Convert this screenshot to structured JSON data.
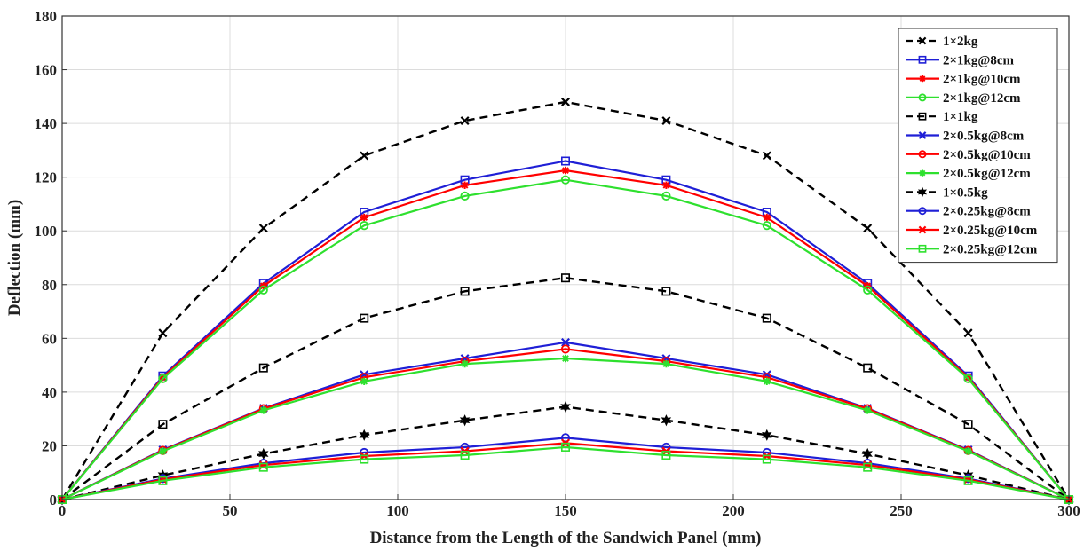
{
  "chart_data": {
    "type": "line",
    "xlabel": "Distance from the Length of the Sandwich Panel (mm)",
    "ylabel": "Deflection (mm)",
    "xlim": [
      0,
      300
    ],
    "ylim": [
      0,
      180
    ],
    "xticks": [
      0,
      50,
      100,
      150,
      200,
      250,
      300
    ],
    "yticks": [
      0,
      20,
      40,
      60,
      80,
      100,
      120,
      140,
      160,
      180
    ],
    "grid": true,
    "legend_position": "top-right",
    "x": [
      0,
      30,
      60,
      90,
      120,
      150,
      180,
      210,
      240,
      270,
      300
    ],
    "series": [
      {
        "name": "1×2kg",
        "color": "#000000",
        "dash": true,
        "marker": "x",
        "values": [
          0,
          62,
          101,
          128,
          141,
          148,
          141,
          128,
          101,
          62,
          0
        ]
      },
      {
        "name": "2×1kg@8cm",
        "color": "#1f1fd6",
        "dash": false,
        "marker": "square",
        "values": [
          0,
          46,
          80.5,
          107,
          119,
          126,
          119,
          107,
          80.5,
          46,
          0
        ]
      },
      {
        "name": "2×1kg@10cm",
        "color": "#ff0000",
        "dash": false,
        "marker": "star",
        "values": [
          0,
          45.5,
          79.5,
          105,
          117,
          122.5,
          117,
          105,
          79.5,
          45.5,
          0
        ]
      },
      {
        "name": "2×1kg@12cm",
        "color": "#2ee02e",
        "dash": false,
        "marker": "circle",
        "values": [
          0,
          45,
          78,
          102,
          113,
          119,
          113,
          102,
          78,
          45,
          0
        ]
      },
      {
        "name": "1×1kg",
        "color": "#000000",
        "dash": true,
        "marker": "square",
        "values": [
          0,
          28,
          49,
          67.5,
          77.5,
          82.5,
          77.5,
          67.5,
          49,
          28,
          0
        ]
      },
      {
        "name": "2×0.5kg@8cm",
        "color": "#1f1fd6",
        "dash": false,
        "marker": "x",
        "values": [
          0,
          18.5,
          34,
          46.5,
          52.5,
          58.5,
          52.5,
          46.5,
          34,
          18.5,
          0
        ]
      },
      {
        "name": "2×0.5kg@10cm",
        "color": "#ff0000",
        "dash": false,
        "marker": "circle",
        "values": [
          0,
          18.3,
          33.8,
          45.5,
          51.5,
          56,
          51.5,
          45.5,
          33.8,
          18.3,
          0
        ]
      },
      {
        "name": "2×0.5kg@12cm",
        "color": "#2ee02e",
        "dash": false,
        "marker": "star",
        "values": [
          0,
          18,
          33.2,
          44,
          50.5,
          52.5,
          50.5,
          44,
          33.2,
          18,
          0
        ]
      },
      {
        "name": "1×0.5kg",
        "color": "#000000",
        "dash": true,
        "marker": "hexagram",
        "values": [
          0,
          9,
          17,
          24,
          29.5,
          34.5,
          29.5,
          24,
          17,
          9,
          0
        ]
      },
      {
        "name": "2×0.25kg@8cm",
        "color": "#1f1fd6",
        "dash": false,
        "marker": "circle",
        "values": [
          0,
          7.8,
          13.5,
          17.5,
          19.5,
          23,
          19.5,
          17.5,
          13.5,
          7.8,
          0
        ]
      },
      {
        "name": "2×0.25kg@10cm",
        "color": "#ff0000",
        "dash": false,
        "marker": "x",
        "values": [
          0,
          7.5,
          12.8,
          16.2,
          18,
          21,
          18,
          16.2,
          12.8,
          7.5,
          0
        ]
      },
      {
        "name": "2×0.25kg@12cm",
        "color": "#2ee02e",
        "dash": false,
        "marker": "square",
        "values": [
          0,
          7,
          12,
          15,
          16.5,
          19.5,
          16.5,
          15,
          12,
          7,
          0
        ]
      }
    ]
  }
}
